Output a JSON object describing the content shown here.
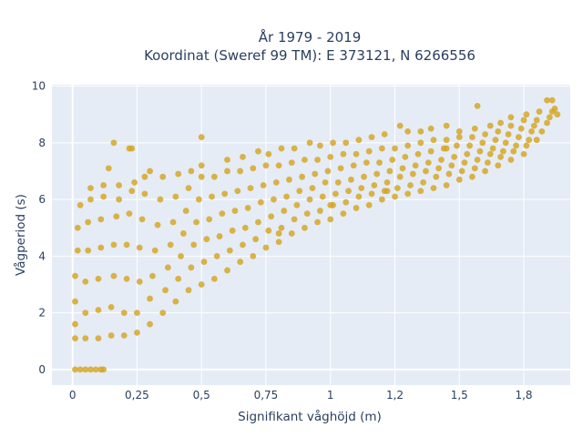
{
  "chart_data": {
    "type": "scatter",
    "title": [
      "År 1979 - 2019",
      "Koordinat (Sweref 99 TM): E 373121, N 6266556"
    ],
    "xlabel": "Signifikant våghöjd (m)",
    "ylabel": "Vågperiod (s)",
    "xlim": [
      -0.08,
      1.93
    ],
    "ylim": [
      -0.55,
      10.05
    ],
    "x_ticks": [
      0,
      0.25,
      0.5,
      0.75,
      1,
      1.25,
      1.5,
      1.75
    ],
    "x_tick_labels": [
      "0",
      "0,25",
      "0,5",
      "0,75",
      "1",
      "1,2",
      "1,5",
      "1,8"
    ],
    "y_ticks": [
      0,
      2,
      4,
      6,
      8,
      10
    ],
    "y_tick_labels": [
      "0",
      "2",
      "4",
      "6",
      "8",
      "10"
    ],
    "grid": true,
    "legend": "none",
    "marker_color": "#d4a520",
    "background_color": "#e5ecf6",
    "series": [
      {
        "points": [
          [
            0.01,
            0
          ],
          [
            0.03,
            0
          ],
          [
            0.05,
            0
          ],
          [
            0.07,
            0
          ],
          [
            0.09,
            0
          ],
          [
            0.11,
            0
          ],
          [
            0.12,
            0
          ],
          [
            0.01,
            1.1
          ],
          [
            0.01,
            1.6
          ],
          [
            0.01,
            2.4
          ],
          [
            0.01,
            3.3
          ],
          [
            0.02,
            4.2
          ],
          [
            0.02,
            5.0
          ],
          [
            0.03,
            5.8
          ],
          [
            0.05,
            1.1
          ],
          [
            0.05,
            2.0
          ],
          [
            0.05,
            3.1
          ],
          [
            0.06,
            4.2
          ],
          [
            0.06,
            5.2
          ],
          [
            0.07,
            6.0
          ],
          [
            0.07,
            6.4
          ],
          [
            0.1,
            1.1
          ],
          [
            0.1,
            2.1
          ],
          [
            0.1,
            3.2
          ],
          [
            0.11,
            4.3
          ],
          [
            0.11,
            5.3
          ],
          [
            0.12,
            6.1
          ],
          [
            0.12,
            6.5
          ],
          [
            0.15,
            1.2
          ],
          [
            0.15,
            2.2
          ],
          [
            0.16,
            3.3
          ],
          [
            0.16,
            4.4
          ],
          [
            0.17,
            5.4
          ],
          [
            0.18,
            6.0
          ],
          [
            0.18,
            6.5
          ],
          [
            0.2,
            1.2
          ],
          [
            0.2,
            2.0
          ],
          [
            0.21,
            3.2
          ],
          [
            0.21,
            4.4
          ],
          [
            0.22,
            5.5
          ],
          [
            0.23,
            6.3
          ],
          [
            0.24,
            6.6
          ],
          [
            0.25,
            1.3
          ],
          [
            0.25,
            2.0
          ],
          [
            0.26,
            3.1
          ],
          [
            0.26,
            4.3
          ],
          [
            0.27,
            5.3
          ],
          [
            0.28,
            6.2
          ],
          [
            0.28,
            6.8
          ],
          [
            0.16,
            8.0
          ],
          [
            0.22,
            7.8
          ],
          [
            0.23,
            7.8
          ],
          [
            0.14,
            7.1
          ],
          [
            0.3,
            7.0
          ],
          [
            0.3,
            1.6
          ],
          [
            0.3,
            2.5
          ],
          [
            0.31,
            3.3
          ],
          [
            0.32,
            4.2
          ],
          [
            0.33,
            5.1
          ],
          [
            0.34,
            6.0
          ],
          [
            0.35,
            6.8
          ],
          [
            0.35,
            2.0
          ],
          [
            0.36,
            2.8
          ],
          [
            0.37,
            3.6
          ],
          [
            0.38,
            4.4
          ],
          [
            0.39,
            5.2
          ],
          [
            0.4,
            6.1
          ],
          [
            0.41,
            6.9
          ],
          [
            0.4,
            2.4
          ],
          [
            0.41,
            3.2
          ],
          [
            0.42,
            4.0
          ],
          [
            0.43,
            4.8
          ],
          [
            0.44,
            5.6
          ],
          [
            0.45,
            6.4
          ],
          [
            0.46,
            7.0
          ],
          [
            0.45,
            2.8
          ],
          [
            0.46,
            3.6
          ],
          [
            0.47,
            4.4
          ],
          [
            0.48,
            5.2
          ],
          [
            0.49,
            6.0
          ],
          [
            0.5,
            6.8
          ],
          [
            0.5,
            7.2
          ],
          [
            0.5,
            3.0
          ],
          [
            0.51,
            3.8
          ],
          [
            0.52,
            4.6
          ],
          [
            0.53,
            5.3
          ],
          [
            0.54,
            6.1
          ],
          [
            0.55,
            6.8
          ],
          [
            0.5,
            8.2
          ],
          [
            0.55,
            3.2
          ],
          [
            0.56,
            4.0
          ],
          [
            0.57,
            4.7
          ],
          [
            0.58,
            5.5
          ],
          [
            0.59,
            6.2
          ],
          [
            0.6,
            7.0
          ],
          [
            0.6,
            7.4
          ],
          [
            0.6,
            3.5
          ],
          [
            0.61,
            4.2
          ],
          [
            0.62,
            4.9
          ],
          [
            0.63,
            5.6
          ],
          [
            0.64,
            6.3
          ],
          [
            0.65,
            7.0
          ],
          [
            0.66,
            7.5
          ],
          [
            0.65,
            3.8
          ],
          [
            0.66,
            4.4
          ],
          [
            0.67,
            5.0
          ],
          [
            0.68,
            5.7
          ],
          [
            0.69,
            6.4
          ],
          [
            0.7,
            7.1
          ],
          [
            0.72,
            7.7
          ],
          [
            0.7,
            4.0
          ],
          [
            0.71,
            4.6
          ],
          [
            0.72,
            5.2
          ],
          [
            0.73,
            5.9
          ],
          [
            0.74,
            6.5
          ],
          [
            0.75,
            7.2
          ],
          [
            0.76,
            7.6
          ],
          [
            0.75,
            4.3
          ],
          [
            0.76,
            4.9
          ],
          [
            0.77,
            5.4
          ],
          [
            0.78,
            6.0
          ],
          [
            0.79,
            6.6
          ],
          [
            0.8,
            7.2
          ],
          [
            0.81,
            7.8
          ],
          [
            0.8,
            4.5
          ],
          [
            0.81,
            5.0
          ],
          [
            0.82,
            5.6
          ],
          [
            0.83,
            6.1
          ],
          [
            0.84,
            6.7
          ],
          [
            0.85,
            7.3
          ],
          [
            0.86,
            7.8
          ],
          [
            0.85,
            4.8
          ],
          [
            0.86,
            5.3
          ],
          [
            0.87,
            5.8
          ],
          [
            0.88,
            6.3
          ],
          [
            0.89,
            6.8
          ],
          [
            0.9,
            7.4
          ],
          [
            0.92,
            8.0
          ],
          [
            0.9,
            5.0
          ],
          [
            0.91,
            5.5
          ],
          [
            0.92,
            6.0
          ],
          [
            0.93,
            6.4
          ],
          [
            0.94,
            6.9
          ],
          [
            0.95,
            7.4
          ],
          [
            0.96,
            7.9
          ],
          [
            0.95,
            5.2
          ],
          [
            0.96,
            5.6
          ],
          [
            0.97,
            6.1
          ],
          [
            0.98,
            6.6
          ],
          [
            0.99,
            7.0
          ],
          [
            1.0,
            7.5
          ],
          [
            1.01,
            8.0
          ],
          [
            1.0,
            5.3
          ],
          [
            1.01,
            5.8
          ],
          [
            1.02,
            6.2
          ],
          [
            1.03,
            6.6
          ],
          [
            1.04,
            7.1
          ],
          [
            1.05,
            7.6
          ],
          [
            1.06,
            8.0
          ],
          [
            1.05,
            5.5
          ],
          [
            1.06,
            5.9
          ],
          [
            1.07,
            6.3
          ],
          [
            1.08,
            6.7
          ],
          [
            1.09,
            7.2
          ],
          [
            1.1,
            7.6
          ],
          [
            1.11,
            8.1
          ],
          [
            1.1,
            5.7
          ],
          [
            1.11,
            6.1
          ],
          [
            1.12,
            6.4
          ],
          [
            1.13,
            6.8
          ],
          [
            1.14,
            7.3
          ],
          [
            1.15,
            7.7
          ],
          [
            1.16,
            8.2
          ],
          [
            1.15,
            5.8
          ],
          [
            1.16,
            6.2
          ],
          [
            1.17,
            6.5
          ],
          [
            1.18,
            6.9
          ],
          [
            1.19,
            7.3
          ],
          [
            1.2,
            7.8
          ],
          [
            1.21,
            8.3
          ],
          [
            1.2,
            6.0
          ],
          [
            1.21,
            6.3
          ],
          [
            1.22,
            6.6
          ],
          [
            1.23,
            7.0
          ],
          [
            1.24,
            7.4
          ],
          [
            1.25,
            7.8
          ],
          [
            1.27,
            8.6
          ],
          [
            1.25,
            6.1
          ],
          [
            1.26,
            6.4
          ],
          [
            1.27,
            6.8
          ],
          [
            1.28,
            7.1
          ],
          [
            1.29,
            7.5
          ],
          [
            1.3,
            7.9
          ],
          [
            1.3,
            8.4
          ],
          [
            1.3,
            6.2
          ],
          [
            1.31,
            6.5
          ],
          [
            1.32,
            6.9
          ],
          [
            1.33,
            7.2
          ],
          [
            1.34,
            7.6
          ],
          [
            1.35,
            8.0
          ],
          [
            1.35,
            8.4
          ],
          [
            1.35,
            6.3
          ],
          [
            1.36,
            6.6
          ],
          [
            1.37,
            7.0
          ],
          [
            1.38,
            7.3
          ],
          [
            1.39,
            7.7
          ],
          [
            1.4,
            8.1
          ],
          [
            1.39,
            8.5
          ],
          [
            1.4,
            6.4
          ],
          [
            1.41,
            6.8
          ],
          [
            1.42,
            7.1
          ],
          [
            1.43,
            7.4
          ],
          [
            1.44,
            7.8
          ],
          [
            1.45,
            8.1
          ],
          [
            1.45,
            8.6
          ],
          [
            1.45,
            6.5
          ],
          [
            1.46,
            6.9
          ],
          [
            1.47,
            7.2
          ],
          [
            1.48,
            7.5
          ],
          [
            1.49,
            7.9
          ],
          [
            1.5,
            8.2
          ],
          [
            1.5,
            8.4
          ],
          [
            1.5,
            6.7
          ],
          [
            1.51,
            7.0
          ],
          [
            1.52,
            7.3
          ],
          [
            1.53,
            7.6
          ],
          [
            1.54,
            7.9
          ],
          [
            1.55,
            8.2
          ],
          [
            1.56,
            8.5
          ],
          [
            1.55,
            6.8
          ],
          [
            1.56,
            7.1
          ],
          [
            1.57,
            7.4
          ],
          [
            1.58,
            7.7
          ],
          [
            1.59,
            8.0
          ],
          [
            1.6,
            8.3
          ],
          [
            1.62,
            8.6
          ],
          [
            1.6,
            7.0
          ],
          [
            1.61,
            7.3
          ],
          [
            1.62,
            7.6
          ],
          [
            1.63,
            7.8
          ],
          [
            1.64,
            8.1
          ],
          [
            1.65,
            8.4
          ],
          [
            1.66,
            8.7
          ],
          [
            1.65,
            7.2
          ],
          [
            1.66,
            7.5
          ],
          [
            1.67,
            7.7
          ],
          [
            1.68,
            8.0
          ],
          [
            1.69,
            8.3
          ],
          [
            1.7,
            8.6
          ],
          [
            1.7,
            8.9
          ],
          [
            1.7,
            7.4
          ],
          [
            1.71,
            7.7
          ],
          [
            1.72,
            7.9
          ],
          [
            1.73,
            8.2
          ],
          [
            1.74,
            8.5
          ],
          [
            1.75,
            8.8
          ],
          [
            1.76,
            9.0
          ],
          [
            1.75,
            7.6
          ],
          [
            1.76,
            7.9
          ],
          [
            1.77,
            8.1
          ],
          [
            1.78,
            8.4
          ],
          [
            1.79,
            8.6
          ],
          [
            1.8,
            8.8
          ],
          [
            1.81,
            9.1
          ],
          [
            1.8,
            8.1
          ],
          [
            1.82,
            8.4
          ],
          [
            1.84,
            8.7
          ],
          [
            1.85,
            8.9
          ],
          [
            1.86,
            9.1
          ],
          [
            1.87,
            9.2
          ],
          [
            1.86,
            9.5
          ],
          [
            1.88,
            9.0
          ],
          [
            1.84,
            9.5
          ],
          [
            1.57,
            9.3
          ],
          [
            1.45,
            7.8
          ],
          [
            1.22,
            6.3
          ],
          [
            1.0,
            5.8
          ],
          [
            0.8,
            4.8
          ]
        ]
      }
    ]
  }
}
